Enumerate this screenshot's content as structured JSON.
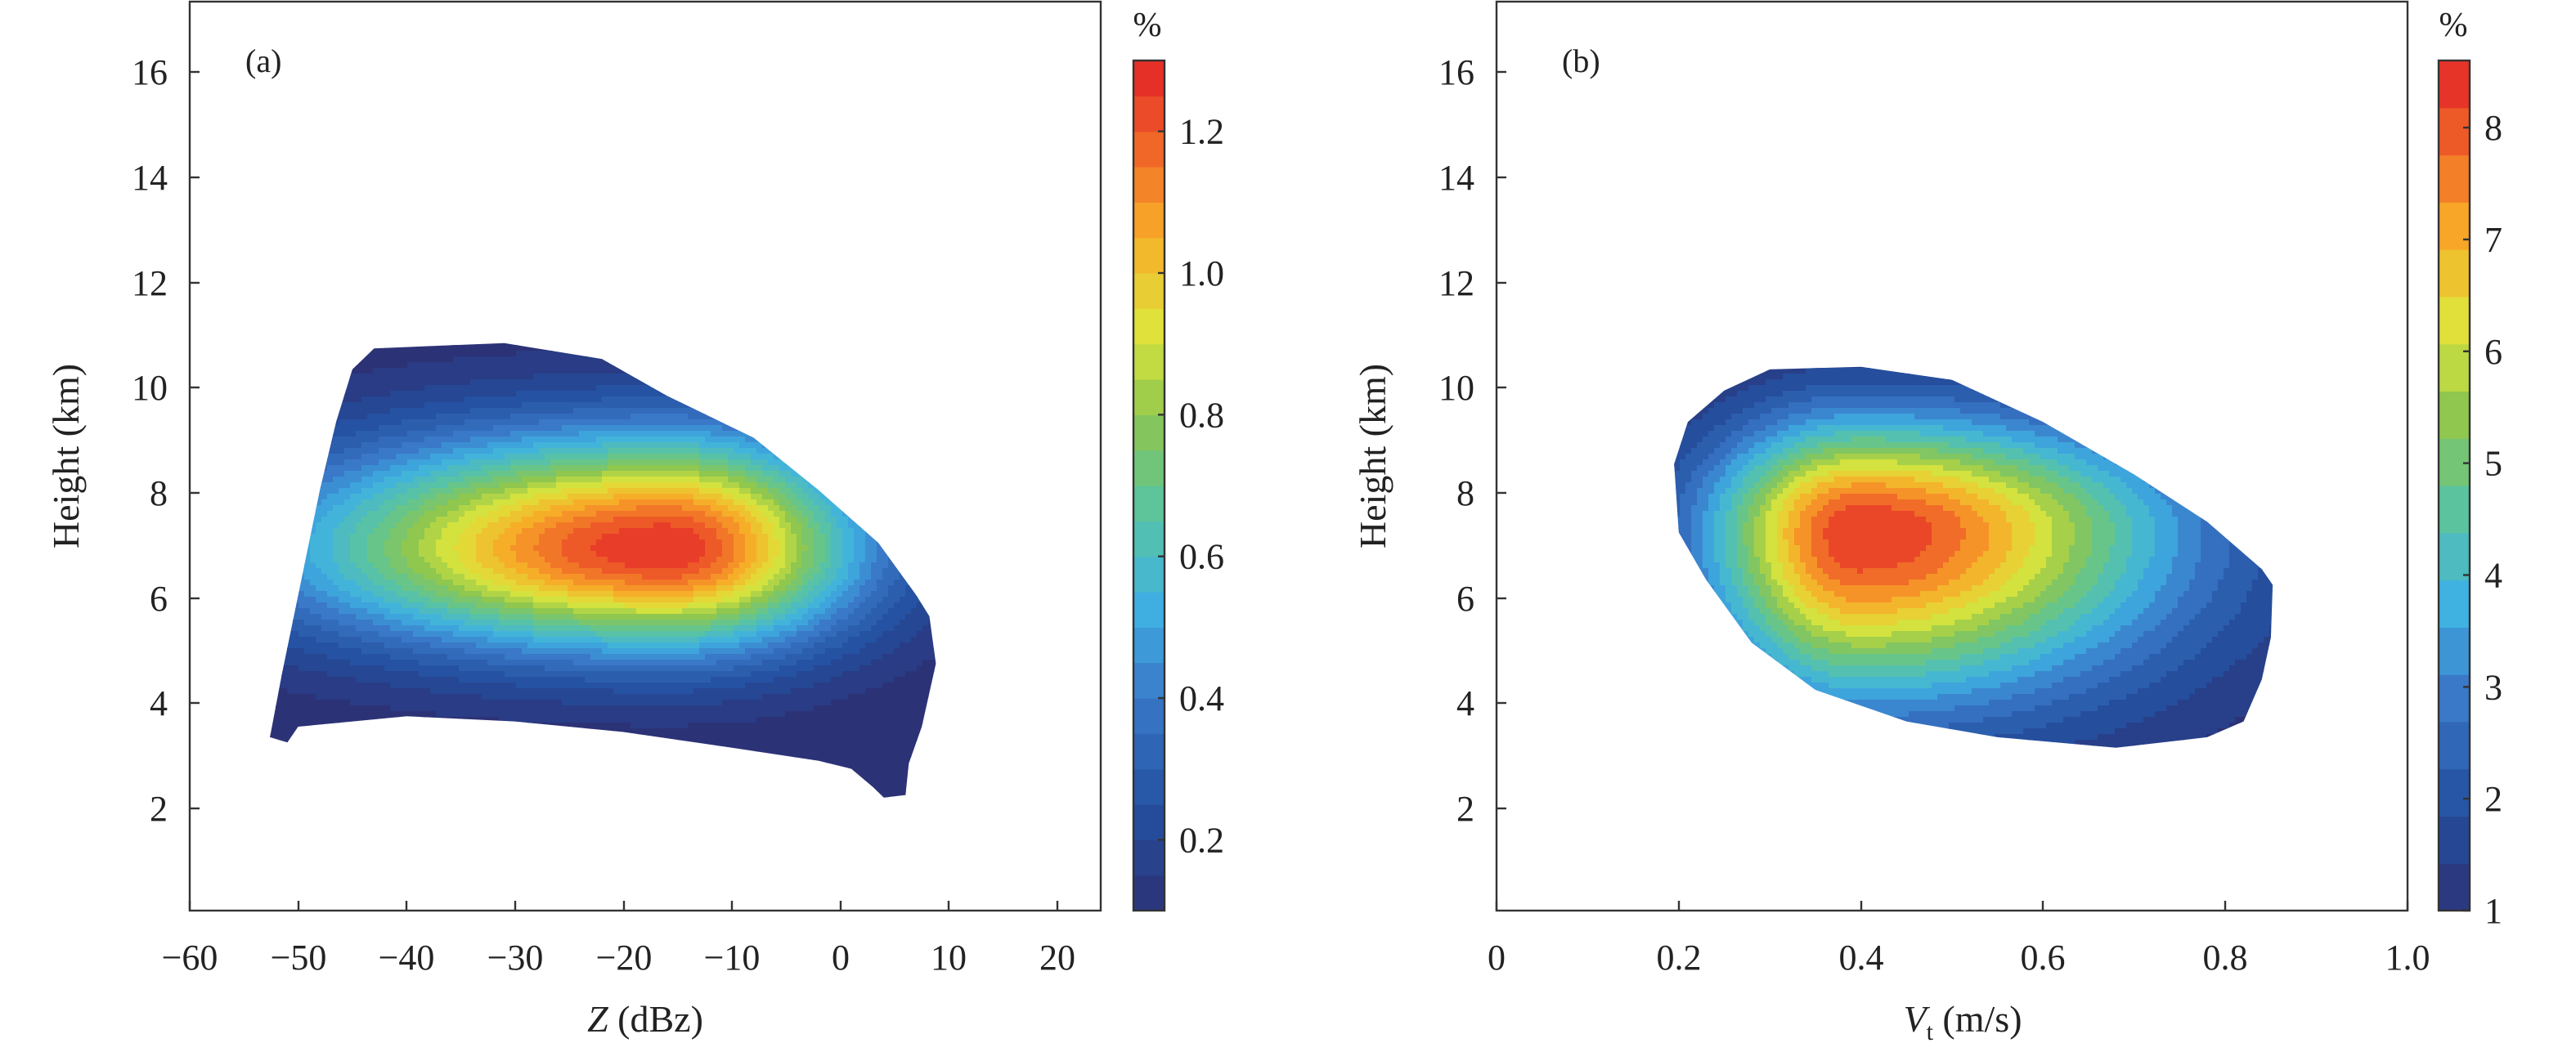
{
  "figure": {
    "panels": [
      "(a)",
      "(b)"
    ]
  },
  "chart_data": [
    {
      "type": "heatmap",
      "panel": "(a)",
      "title": "",
      "xlabel": "Z (dBz)",
      "xlabel_main": "Z",
      "xlabel_unit": "(dBz)",
      "ylabel": "Height (km)",
      "xlim": [
        -60,
        24
      ],
      "ylim": [
        0,
        17.3
      ],
      "xticks": [
        -60,
        -50,
        -40,
        -30,
        -20,
        -10,
        0,
        10,
        20
      ],
      "xtick_labels": [
        "−60",
        "−50",
        "−40",
        "−30",
        "−20",
        "−10",
        "0",
        "10",
        "20"
      ],
      "yticks": [
        2,
        4,
        6,
        8,
        10,
        12,
        14,
        16
      ],
      "ytick_labels": [
        "2",
        "4",
        "6",
        "8",
        "10",
        "12",
        "14",
        "16"
      ],
      "colorbar": {
        "label": "%",
        "min": 0.1,
        "max": 1.3,
        "levels": 24,
        "ticks": [
          0.2,
          0.4,
          0.6,
          0.8,
          1.0,
          1.2
        ],
        "tick_labels": [
          "0.2",
          "0.4",
          "0.6",
          "0.8",
          "1.0",
          "1.2"
        ]
      },
      "outline": [
        [
          -52.6,
          3.3
        ],
        [
          -51,
          3.2
        ],
        [
          -50,
          3.5
        ],
        [
          -45,
          3.6
        ],
        [
          -40,
          3.7
        ],
        [
          -30,
          3.6
        ],
        [
          -20,
          3.4
        ],
        [
          -10,
          3.1
        ],
        [
          -2,
          2.85
        ],
        [
          1,
          2.7
        ],
        [
          3,
          2.35
        ],
        [
          4,
          2.15
        ],
        [
          6,
          2.2
        ],
        [
          6.3,
          2.8
        ],
        [
          7.5,
          3.5
        ],
        [
          8.8,
          4.7
        ],
        [
          8.2,
          5.6
        ],
        [
          7,
          6
        ],
        [
          3.5,
          7
        ],
        [
          -2,
          8
        ],
        [
          -8,
          9
        ],
        [
          -16,
          9.8
        ],
        [
          -22,
          10.5
        ],
        [
          -31,
          10.8
        ],
        [
          -43,
          10.7
        ],
        [
          -45,
          10.3
        ],
        [
          -46.5,
          9.3
        ],
        [
          -48,
          8
        ],
        [
          -50,
          6
        ],
        [
          -51.5,
          4.5
        ]
      ],
      "peak": {
        "z": -16,
        "height": 6.9,
        "value": 1.3
      },
      "falloff": {
        "dx_left": 42,
        "dx_right": 22,
        "dy_down": 2.4,
        "dy_up": 2.7
      }
    },
    {
      "type": "heatmap",
      "panel": "(b)",
      "title": "",
      "xlabel": "Vt (m/s)",
      "xlabel_main": "V",
      "xlabel_sub": "t",
      "xlabel_unit": "(m/s)",
      "ylabel": "Height (km)",
      "xlim": [
        0,
        1.0
      ],
      "ylim": [
        0,
        17.3
      ],
      "xticks": [
        0,
        0.2,
        0.4,
        0.6,
        0.8,
        1.0
      ],
      "xtick_labels": [
        "0",
        "0.2",
        "0.4",
        "0.6",
        "0.8",
        "1.0"
      ],
      "yticks": [
        2,
        4,
        6,
        8,
        10,
        12,
        14,
        16
      ],
      "ytick_labels": [
        "2",
        "4",
        "6",
        "8",
        "10",
        "12",
        "14",
        "16"
      ],
      "colorbar": {
        "label": "%",
        "min": 1,
        "max": 8.6,
        "levels": 18,
        "ticks": [
          1,
          2,
          3,
          4,
          5,
          6,
          7,
          8
        ],
        "tick_labels": [
          "1",
          "2",
          "3",
          "4",
          "5",
          "6",
          "7",
          "8"
        ]
      },
      "outline": [
        [
          0.195,
          8.5
        ],
        [
          0.21,
          9.3
        ],
        [
          0.25,
          9.9
        ],
        [
          0.3,
          10.3
        ],
        [
          0.4,
          10.35
        ],
        [
          0.5,
          10.1
        ],
        [
          0.6,
          9.3
        ],
        [
          0.7,
          8.3
        ],
        [
          0.78,
          7.4
        ],
        [
          0.84,
          6.5
        ],
        [
          0.852,
          6.2
        ],
        [
          0.85,
          5.2
        ],
        [
          0.84,
          4.4
        ],
        [
          0.82,
          3.6
        ],
        [
          0.78,
          3.3
        ],
        [
          0.68,
          3.1
        ],
        [
          0.55,
          3.3
        ],
        [
          0.45,
          3.6
        ],
        [
          0.35,
          4.2
        ],
        [
          0.28,
          5.1
        ],
        [
          0.23,
          6.3
        ],
        [
          0.2,
          7.2
        ]
      ],
      "peak": {
        "v": 0.4,
        "height": 7.2,
        "value": 8.6
      },
      "falloff": {
        "dx_left": 0.21,
        "dx_right": 0.42,
        "dy_down": 3.9,
        "dy_up": 2.7
      }
    }
  ]
}
